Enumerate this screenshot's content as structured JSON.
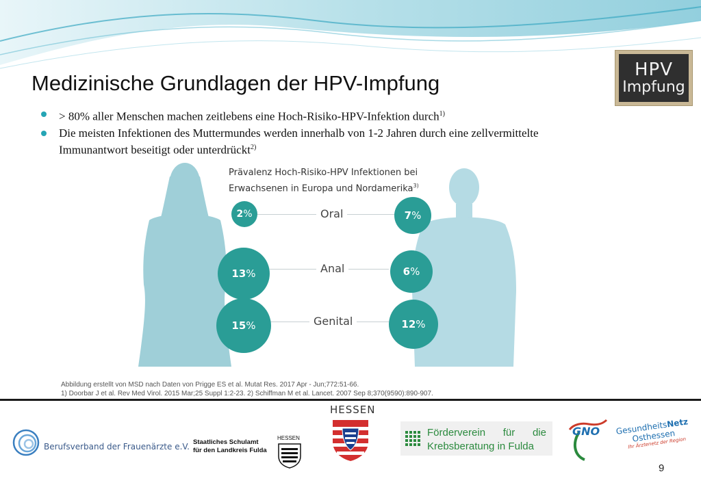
{
  "slide": {
    "title": "Medizinische Grundlagen der HPV-Impfung",
    "badge": {
      "line1": "HPV",
      "line2": "Impfung"
    },
    "bullets": [
      {
        "text": "> 80% aller Menschen machen zeitlebens eine Hoch-Risiko-HPV-Infektion durch",
        "ref": "1)"
      },
      {
        "text": "Die meisten Infektionen des Muttermundes werden innerhalb von 1-2 Jahren durch eine zellvermittelte",
        "text2": "Immunantwort beseitigt oder unterdrückt",
        "ref": "2)"
      }
    ],
    "infographic": {
      "title_line1": "Prävalenz Hoch-Risiko-HPV Infektionen bei",
      "title_line2": "Erwachsenen in Europa und Nordamerika",
      "title_ref": "3)",
      "rows": [
        {
          "label": "Oral",
          "women": "2",
          "men": "7",
          "women_value": 2,
          "men_value": 7
        },
        {
          "label": "Anal",
          "women": "13",
          "men": "6",
          "women_value": 13,
          "men_value": 6
        },
        {
          "label": "Genital",
          "women": "15",
          "men": "12",
          "women_value": 15,
          "men_value": 12
        }
      ],
      "percent_sign": "%",
      "circle_color": "#2a9d96",
      "silhouette_color": "#9fcfd8"
    },
    "caption": {
      "line1": "Abbildung erstellt von MSD nach Daten von Prigge ES et al. Mutat Res. 2017 Apr - Jun;772:51-66.",
      "line2": "1) Doorbar J et al. Rev Med Virol. 2015 Mar;25 Suppl 1:2-23. 2) Schiffman M et al. Lancet. 2007 Sep 8;370(9590):890-907."
    },
    "footer": {
      "bvf": "Berufsverband der Frauenärzte e.V.",
      "schulamt_line1": "Staatliches Schulamt",
      "schulamt_line2": "für den Landkreis Fulda",
      "hessen_small": "HESSEN",
      "hessen": "HESSEN",
      "foerder_w1": "Förderverein",
      "foerder_w2": "für",
      "foerder_w3": "die",
      "foerder_line2": "Krebsberatung in Fulda",
      "gno_mark": "GNO",
      "gno_name1": "Gesundheits",
      "gno_name2": "Netz",
      "gno_name3": "Osthessen",
      "gno_tagline": "Ihr Ärztenetz der Region"
    },
    "page_number": "9",
    "accent_color": "#25a5b5"
  }
}
